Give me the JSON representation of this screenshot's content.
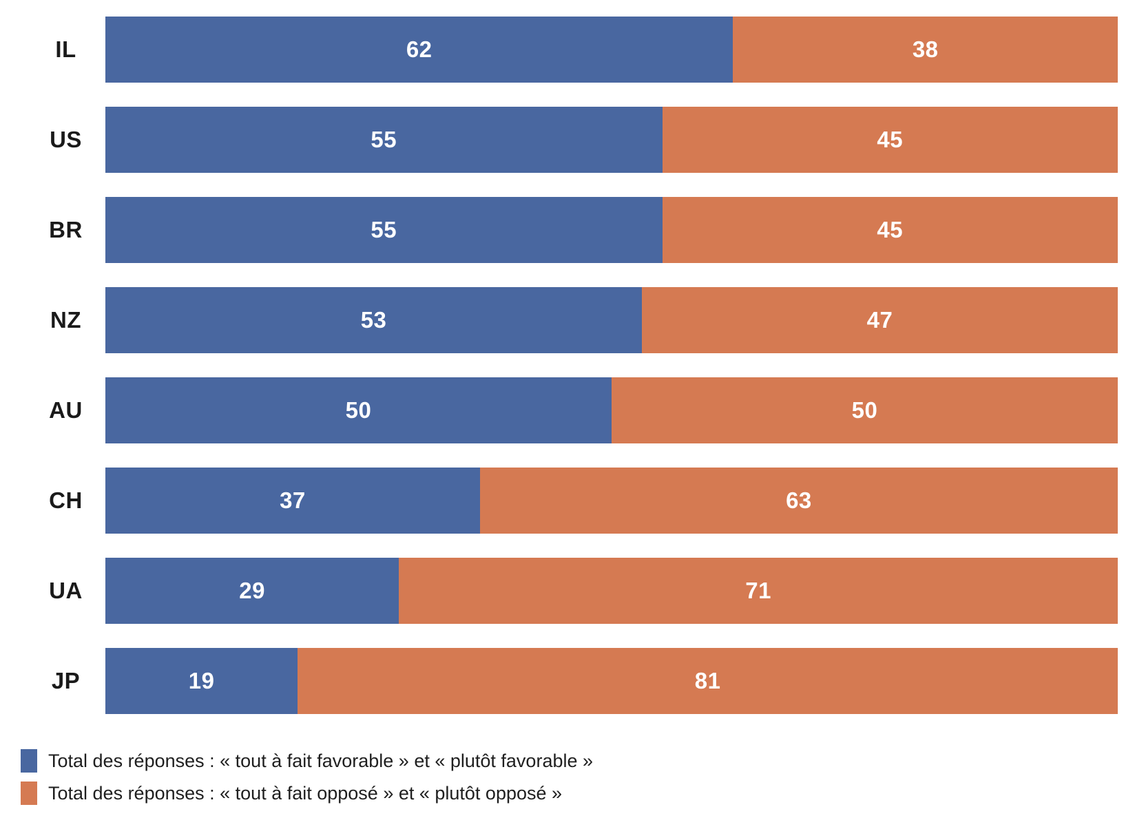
{
  "chart_data": {
    "type": "bar",
    "orientation": "horizontal",
    "stacked": true,
    "unit": "percent",
    "xlim": [
      0,
      100
    ],
    "grid": false,
    "value_labels": "inside-center",
    "legend_position": "bottom-left",
    "title": "",
    "xlabel": "",
    "ylabel": "",
    "categories": [
      "IL",
      "US",
      "BR",
      "NZ",
      "AU",
      "CH",
      "UA",
      "JP"
    ],
    "series": [
      {
        "name": "Total des réponses : « tout à fait favorable » et « plutôt favorable »",
        "color": "#4967A0",
        "values": [
          62,
          55,
          55,
          53,
          50,
          37,
          29,
          19
        ]
      },
      {
        "name": "Total des réponses : « tout à fait opposé » et « plutôt opposé »",
        "color": "#D57A52",
        "values": [
          38,
          45,
          45,
          47,
          50,
          63,
          71,
          81
        ]
      }
    ]
  },
  "legend": {
    "items": [
      {
        "label": "Total des réponses : « tout à fait favorable » et « plutôt favorable »",
        "color": "#4967A0"
      },
      {
        "label": "Total des réponses : « tout à fait opposé » et « plutôt opposé »",
        "color": "#D57A52"
      }
    ]
  },
  "colors": {
    "favorable": "#4967A0",
    "opposed": "#D57A52",
    "value_text": "#FFFFFF",
    "label_text": "#1A1A1A",
    "background": "#FFFFFF"
  }
}
